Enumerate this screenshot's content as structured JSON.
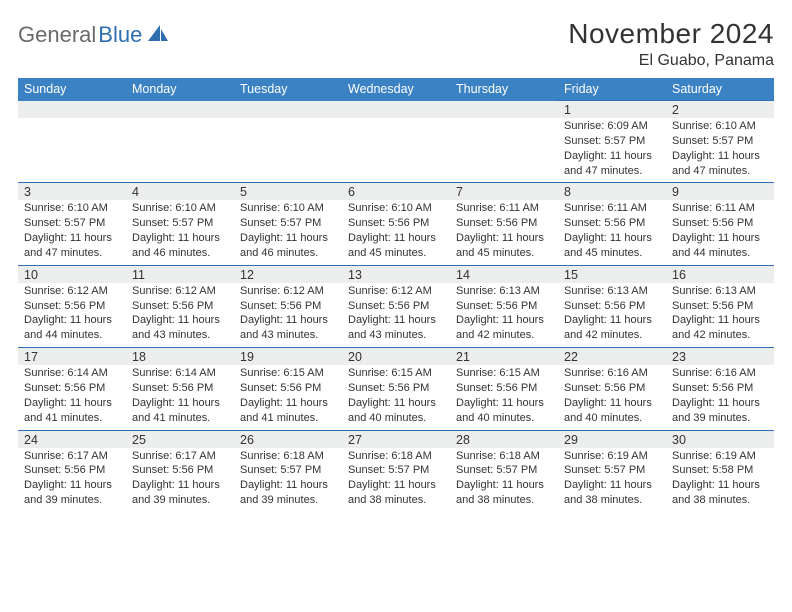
{
  "brand": {
    "part1": "General",
    "part2": "Blue"
  },
  "title": "November 2024",
  "location": "El Guabo, Panama",
  "colors": {
    "header_bg": "#3b82c4",
    "border": "#2f6fb0",
    "shade": "#eceded",
    "text": "#333333",
    "logo_gray": "#6a6a6a",
    "logo_blue": "#2f6fb0"
  },
  "day_headers": [
    "Sunday",
    "Monday",
    "Tuesday",
    "Wednesday",
    "Thursday",
    "Friday",
    "Saturday"
  ],
  "weeks": [
    [
      {
        "n": "",
        "lines": [
          "",
          "",
          "",
          ""
        ]
      },
      {
        "n": "",
        "lines": [
          "",
          "",
          "",
          ""
        ]
      },
      {
        "n": "",
        "lines": [
          "",
          "",
          "",
          ""
        ]
      },
      {
        "n": "",
        "lines": [
          "",
          "",
          "",
          ""
        ]
      },
      {
        "n": "",
        "lines": [
          "",
          "",
          "",
          ""
        ]
      },
      {
        "n": "1",
        "lines": [
          "Sunrise: 6:09 AM",
          "Sunset: 5:57 PM",
          "Daylight: 11 hours",
          "and 47 minutes."
        ]
      },
      {
        "n": "2",
        "lines": [
          "Sunrise: 6:10 AM",
          "Sunset: 5:57 PM",
          "Daylight: 11 hours",
          "and 47 minutes."
        ]
      }
    ],
    [
      {
        "n": "3",
        "lines": [
          "Sunrise: 6:10 AM",
          "Sunset: 5:57 PM",
          "Daylight: 11 hours",
          "and 47 minutes."
        ]
      },
      {
        "n": "4",
        "lines": [
          "Sunrise: 6:10 AM",
          "Sunset: 5:57 PM",
          "Daylight: 11 hours",
          "and 46 minutes."
        ]
      },
      {
        "n": "5",
        "lines": [
          "Sunrise: 6:10 AM",
          "Sunset: 5:57 PM",
          "Daylight: 11 hours",
          "and 46 minutes."
        ]
      },
      {
        "n": "6",
        "lines": [
          "Sunrise: 6:10 AM",
          "Sunset: 5:56 PM",
          "Daylight: 11 hours",
          "and 45 minutes."
        ]
      },
      {
        "n": "7",
        "lines": [
          "Sunrise: 6:11 AM",
          "Sunset: 5:56 PM",
          "Daylight: 11 hours",
          "and 45 minutes."
        ]
      },
      {
        "n": "8",
        "lines": [
          "Sunrise: 6:11 AM",
          "Sunset: 5:56 PM",
          "Daylight: 11 hours",
          "and 45 minutes."
        ]
      },
      {
        "n": "9",
        "lines": [
          "Sunrise: 6:11 AM",
          "Sunset: 5:56 PM",
          "Daylight: 11 hours",
          "and 44 minutes."
        ]
      }
    ],
    [
      {
        "n": "10",
        "lines": [
          "Sunrise: 6:12 AM",
          "Sunset: 5:56 PM",
          "Daylight: 11 hours",
          "and 44 minutes."
        ]
      },
      {
        "n": "11",
        "lines": [
          "Sunrise: 6:12 AM",
          "Sunset: 5:56 PM",
          "Daylight: 11 hours",
          "and 43 minutes."
        ]
      },
      {
        "n": "12",
        "lines": [
          "Sunrise: 6:12 AM",
          "Sunset: 5:56 PM",
          "Daylight: 11 hours",
          "and 43 minutes."
        ]
      },
      {
        "n": "13",
        "lines": [
          "Sunrise: 6:12 AM",
          "Sunset: 5:56 PM",
          "Daylight: 11 hours",
          "and 43 minutes."
        ]
      },
      {
        "n": "14",
        "lines": [
          "Sunrise: 6:13 AM",
          "Sunset: 5:56 PM",
          "Daylight: 11 hours",
          "and 42 minutes."
        ]
      },
      {
        "n": "15",
        "lines": [
          "Sunrise: 6:13 AM",
          "Sunset: 5:56 PM",
          "Daylight: 11 hours",
          "and 42 minutes."
        ]
      },
      {
        "n": "16",
        "lines": [
          "Sunrise: 6:13 AM",
          "Sunset: 5:56 PM",
          "Daylight: 11 hours",
          "and 42 minutes."
        ]
      }
    ],
    [
      {
        "n": "17",
        "lines": [
          "Sunrise: 6:14 AM",
          "Sunset: 5:56 PM",
          "Daylight: 11 hours",
          "and 41 minutes."
        ]
      },
      {
        "n": "18",
        "lines": [
          "Sunrise: 6:14 AM",
          "Sunset: 5:56 PM",
          "Daylight: 11 hours",
          "and 41 minutes."
        ]
      },
      {
        "n": "19",
        "lines": [
          "Sunrise: 6:15 AM",
          "Sunset: 5:56 PM",
          "Daylight: 11 hours",
          "and 41 minutes."
        ]
      },
      {
        "n": "20",
        "lines": [
          "Sunrise: 6:15 AM",
          "Sunset: 5:56 PM",
          "Daylight: 11 hours",
          "and 40 minutes."
        ]
      },
      {
        "n": "21",
        "lines": [
          "Sunrise: 6:15 AM",
          "Sunset: 5:56 PM",
          "Daylight: 11 hours",
          "and 40 minutes."
        ]
      },
      {
        "n": "22",
        "lines": [
          "Sunrise: 6:16 AM",
          "Sunset: 5:56 PM",
          "Daylight: 11 hours",
          "and 40 minutes."
        ]
      },
      {
        "n": "23",
        "lines": [
          "Sunrise: 6:16 AM",
          "Sunset: 5:56 PM",
          "Daylight: 11 hours",
          "and 39 minutes."
        ]
      }
    ],
    [
      {
        "n": "24",
        "lines": [
          "Sunrise: 6:17 AM",
          "Sunset: 5:56 PM",
          "Daylight: 11 hours",
          "and 39 minutes."
        ]
      },
      {
        "n": "25",
        "lines": [
          "Sunrise: 6:17 AM",
          "Sunset: 5:56 PM",
          "Daylight: 11 hours",
          "and 39 minutes."
        ]
      },
      {
        "n": "26",
        "lines": [
          "Sunrise: 6:18 AM",
          "Sunset: 5:57 PM",
          "Daylight: 11 hours",
          "and 39 minutes."
        ]
      },
      {
        "n": "27",
        "lines": [
          "Sunrise: 6:18 AM",
          "Sunset: 5:57 PM",
          "Daylight: 11 hours",
          "and 38 minutes."
        ]
      },
      {
        "n": "28",
        "lines": [
          "Sunrise: 6:18 AM",
          "Sunset: 5:57 PM",
          "Daylight: 11 hours",
          "and 38 minutes."
        ]
      },
      {
        "n": "29",
        "lines": [
          "Sunrise: 6:19 AM",
          "Sunset: 5:57 PM",
          "Daylight: 11 hours",
          "and 38 minutes."
        ]
      },
      {
        "n": "30",
        "lines": [
          "Sunrise: 6:19 AM",
          "Sunset: 5:58 PM",
          "Daylight: 11 hours",
          "and 38 minutes."
        ]
      }
    ]
  ]
}
